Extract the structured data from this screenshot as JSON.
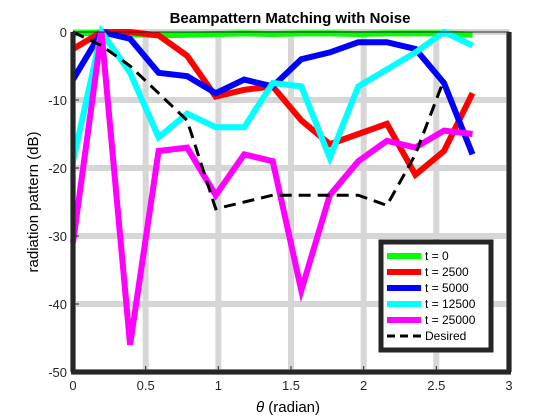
{
  "chart_data": {
    "type": "line",
    "title": "Beampattern Matching with Noise",
    "xlabel_symbol": "θ",
    "xlabel_rest": " (radian)",
    "ylabel": "radiation pattern (dB)",
    "xlim": [
      0,
      3
    ],
    "ylim": [
      -50,
      0
    ],
    "xticks": [
      0,
      0.5,
      1,
      1.5,
      2,
      2.5,
      3
    ],
    "xtick_labels": [
      "0",
      "0.5",
      "1",
      "1.5",
      "2",
      "2.5",
      "3"
    ],
    "yticks": [
      0,
      -10,
      -20,
      -30,
      -40,
      -50
    ],
    "ytick_labels": [
      "0",
      "-10",
      "-20",
      "-30",
      "-40",
      "-50"
    ],
    "grid": true,
    "legend_position": "bottom-right",
    "x": [
      0,
      0.196,
      0.393,
      0.589,
      0.785,
      0.982,
      1.178,
      1.374,
      1.571,
      1.767,
      1.963,
      2.16,
      2.356,
      2.553,
      2.749
    ],
    "series": [
      {
        "name": "t = 0",
        "color": "#00ff00",
        "dash": "solid",
        "values": [
          -0.2,
          -0.1,
          -0.3,
          -0.5,
          -0.4,
          -0.3,
          -0.2,
          -0.3,
          -0.2,
          -0.2,
          -0.3,
          -0.2,
          -0.2,
          -0.2,
          -0.4
        ]
      },
      {
        "name": "t = 2500",
        "color": "#ff0000",
        "dash": "solid",
        "values": [
          -2.5,
          0,
          0,
          -0.5,
          -3.5,
          -9.5,
          -8.5,
          -8,
          -13,
          -16.5,
          -15,
          -13.5,
          -21,
          -17.5,
          -9
        ]
      },
      {
        "name": "t = 5000",
        "color": "#0000ff",
        "dash": "solid",
        "values": [
          -7,
          0,
          -1,
          -6,
          -6.5,
          -9,
          -7,
          -8,
          -4,
          -3,
          -1.5,
          -1.5,
          -2.5,
          -7.5,
          -18
        ]
      },
      {
        "name": "t = 12500",
        "color": "#00ffff",
        "dash": "solid",
        "values": [
          -19,
          0,
          -6,
          -15.5,
          -12,
          -14,
          -14,
          -7.5,
          -8,
          -18.5,
          -8,
          -5.5,
          -3,
          0,
          -2
        ]
      },
      {
        "name": "t = 25000",
        "color": "#ff00ff",
        "dash": "solid",
        "values": [
          -31,
          0,
          -46,
          -17.5,
          -17,
          -24,
          -18,
          -19,
          -38,
          -24,
          -19,
          -16,
          -17,
          -14.5,
          -15
        ]
      },
      {
        "name": "Desired",
        "color": "#000000",
        "dash": "dashed",
        "values": [
          0,
          -2,
          -5,
          -9,
          -13,
          -26,
          -25,
          -24,
          -24,
          -24,
          -24,
          -25.5,
          -18,
          -7,
          null
        ]
      }
    ]
  }
}
